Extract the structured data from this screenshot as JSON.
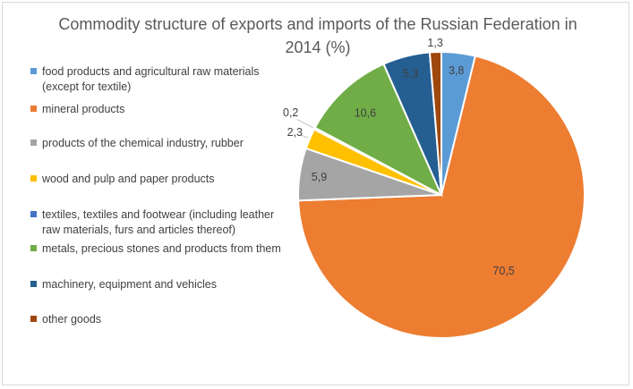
{
  "chart_data": {
    "type": "pie",
    "title": "Commodity structure of exports and imports of the Russian Federation in 2014 (%)",
    "legend_position": "left",
    "categories": [
      "food products and agricultural raw materials (except for textile)",
      "mineral products",
      "products of the chemical industry, rubber",
      "wood and pulp and paper products",
      "textiles, textiles and footwear (including leather raw materials, furs and articles thereof)",
      "metals, precious stones and products from them",
      "machinery, equipment and vehicles",
      "other goods"
    ],
    "values": [
      3.8,
      70.5,
      5.9,
      2.3,
      0.2,
      10.6,
      5.3,
      1.3
    ],
    "data_labels": [
      "3,8",
      "70,5",
      "5,9",
      "2,3",
      "0,2",
      "10,6",
      "5,3",
      "1,3"
    ],
    "colors": [
      "#5b9bd5",
      "#ed7d31",
      "#a5a5a5",
      "#ffc000",
      "#4472c4",
      "#70ad47",
      "#255e91",
      "#9e480e"
    ]
  }
}
